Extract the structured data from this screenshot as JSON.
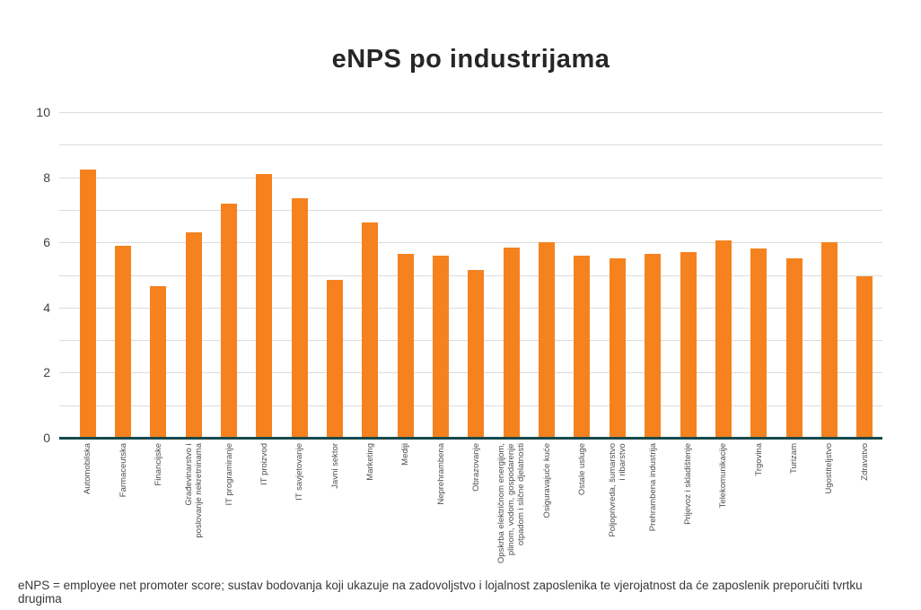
{
  "chart_data": {
    "type": "bar",
    "title": "eNPS po industrijama",
    "categories": [
      "Automobilska",
      "Farmaceutska",
      "Financijske",
      "Građevinarstvo i\nposlovanje nekretninama",
      "IT programiranje",
      "IT proizvod",
      "IT savjetovanje",
      "Javni sektor",
      "Marketing",
      "Mediji",
      "Neprehrambena",
      "Obrazovanje",
      "Opskrba električnom energijom,\nplinom, vodom, gospodarenje\notpadom i slične djelatnosti",
      "Osiguravajuće kuće",
      "Ostale usluge",
      "Poljoprivreda, šumarstvo\ni ribarstvo",
      "Prehrambena industrija",
      "Prijevoz i skladištenje",
      "Telekomunikacije",
      "Trgovina",
      "Turizam",
      "Ugostiteljstvo",
      "Zdravstvo"
    ],
    "values": [
      8.25,
      5.9,
      4.65,
      6.3,
      7.2,
      8.1,
      7.35,
      4.85,
      6.6,
      5.65,
      5.6,
      5.15,
      5.85,
      6.0,
      5.6,
      5.5,
      5.65,
      5.7,
      6.05,
      5.8,
      5.5,
      6.0,
      4.95
    ],
    "xlabel": "",
    "ylabel": "",
    "ylim": [
      0,
      10
    ],
    "y_ticks": [
      0,
      2,
      4,
      6,
      8,
      10
    ],
    "gridline_step": 1,
    "grid": "horizontal",
    "legend_position": "none",
    "bar_color": "#f5821f",
    "axis_line_color": "#17494c",
    "gridline_color": "#dcdcdc"
  },
  "footnote": "eNPS = employee net promoter score; sustav bodovanja koji ukazuje na zadovoljstvo i lojalnost zaposlenika te vjerojatnost da će zaposlenik preporučiti tvrtku drugima"
}
